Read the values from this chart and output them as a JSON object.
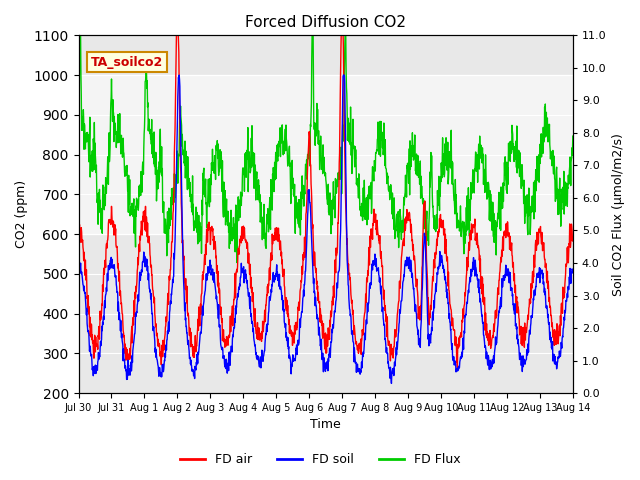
{
  "title": "Forced Diffusion CO2",
  "xlabel": "Time",
  "ylabel_left": "CO2 (ppm)",
  "ylabel_right": "Soil CO2 Flux (μmol/m2/s)",
  "annotation": "TA_soilco2",
  "ylim_left": [
    200,
    1100
  ],
  "ylim_right": [
    0.0,
    11.0
  ],
  "yticks_left": [
    200,
    300,
    400,
    500,
    600,
    700,
    800,
    900,
    1000,
    1100
  ],
  "yticks_right": [
    0.0,
    1.0,
    2.0,
    3.0,
    4.0,
    5.0,
    6.0,
    7.0,
    8.0,
    9.0,
    10.0,
    11.0
  ],
  "xtick_labels": [
    "Jul 30",
    "Jul 31",
    "Aug 1",
    "Aug 2",
    "Aug 3",
    "Aug 4",
    "Aug 5",
    "Aug 6",
    "Aug 7",
    "Aug 8",
    "Aug 9",
    "Aug 10",
    "Aug 11",
    "Aug 12",
    "Aug 13",
    "Aug 14"
  ],
  "color_air": "#ff0000",
  "color_soil": "#0000ff",
  "color_flux": "#00cc00",
  "bg_color": "#e8e8e8",
  "shade_band_lo": 600,
  "shade_band_hi": 1000,
  "legend_labels": [
    "FD air",
    "FD soil",
    "FD Flux"
  ],
  "linewidth": 1.0,
  "n_days": 15,
  "pts_per_day": 96
}
